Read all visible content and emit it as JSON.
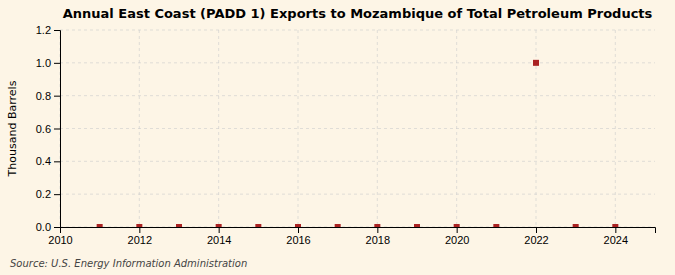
{
  "chart_data": {
    "type": "scatter",
    "title": "Annual East Coast (PADD 1) Exports to Mozambique of Total Petroleum Products",
    "ylabel": "Thousand Barrels",
    "source": "Source: U.S. Energy Information Administration",
    "x": [
      2011,
      2012,
      2013,
      2014,
      2015,
      2016,
      2017,
      2018,
      2019,
      2020,
      2021,
      2022,
      2023,
      2024
    ],
    "values": [
      0.0,
      0.0,
      0.0,
      0.0,
      0.0,
      0.0,
      0.0,
      0.0,
      0.0,
      0.0,
      0.0,
      1.0,
      0.0,
      0.0
    ],
    "xlim": [
      2010,
      2025
    ],
    "xticks": [
      2010,
      2012,
      2014,
      2016,
      2018,
      2020,
      2022,
      2024
    ],
    "ylim": [
      0.0,
      1.2
    ],
    "yticks": [
      {
        "value": 0.0,
        "label": "0.0"
      },
      0.2,
      0.4,
      0.6,
      0.8,
      {
        "value": 1.0,
        "label": "1.0"
      },
      1.2
    ],
    "color": "#aa2222",
    "marker": "square",
    "grid": true
  }
}
